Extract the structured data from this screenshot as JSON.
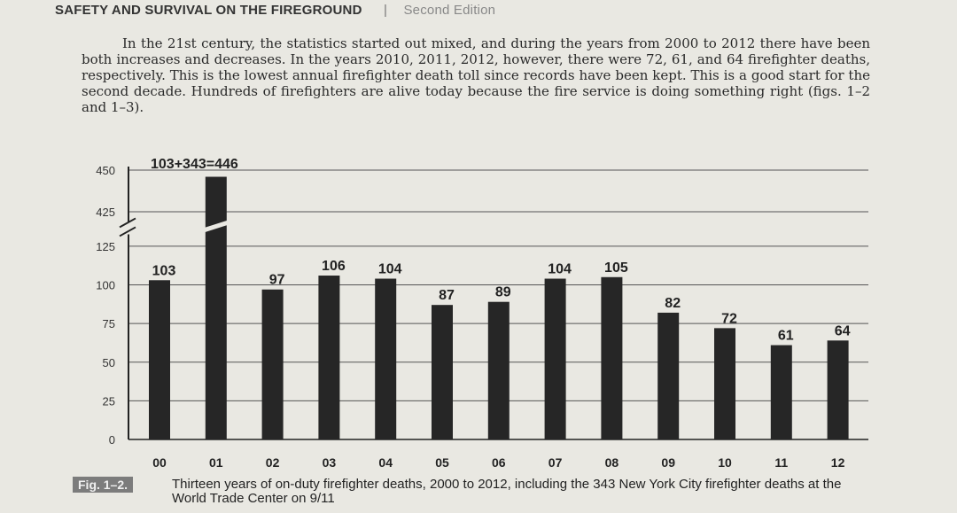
{
  "header": {
    "title": "SAFETY AND SURVIVAL ON THE FIREGROUND",
    "separator": "|",
    "edition": "Second Edition"
  },
  "body": {
    "paragraph": "In the 21st century, the statistics started out mixed, and during the years from 2000 to 2012 there have been both increases and decreases. In the years 2010, 2011, 2012, however, there were 72, 61, and 64 firefighter deaths, respectively. This is the lowest annual firefighter death toll since records have been kept. This is a good start for the second decade. Hundreds of firefighters are alive today because the fire service is doing something right (figs. 1–2 and 1–3)."
  },
  "chart_data": {
    "type": "bar",
    "categories": [
      "00",
      "01",
      "02",
      "03",
      "04",
      "05",
      "06",
      "07",
      "08",
      "09",
      "10",
      "11",
      "12"
    ],
    "values": [
      103,
      446,
      97,
      106,
      104,
      87,
      89,
      104,
      105,
      82,
      72,
      61,
      64
    ],
    "data_labels": [
      "103",
      "",
      "97",
      "106",
      "104",
      "87",
      "89",
      "104",
      "105",
      "82",
      "72",
      "61",
      "64"
    ],
    "annotation": "103+343=446",
    "y_ticks": [
      "0",
      "25",
      "50",
      "75",
      "100",
      "125",
      "425",
      "450"
    ],
    "axis_break": "between 125 and 425",
    "ylim": [
      0,
      450
    ],
    "grid": true,
    "bar_color": "#262626",
    "title": "",
    "xlabel": "",
    "ylabel": ""
  },
  "caption": {
    "label": "Fig. 1–2.",
    "text": "Thirteen years of on-duty firefighter deaths, 2000 to 2012, including the 343 New York City firefighter deaths at the World Trade Center on 9/11"
  }
}
